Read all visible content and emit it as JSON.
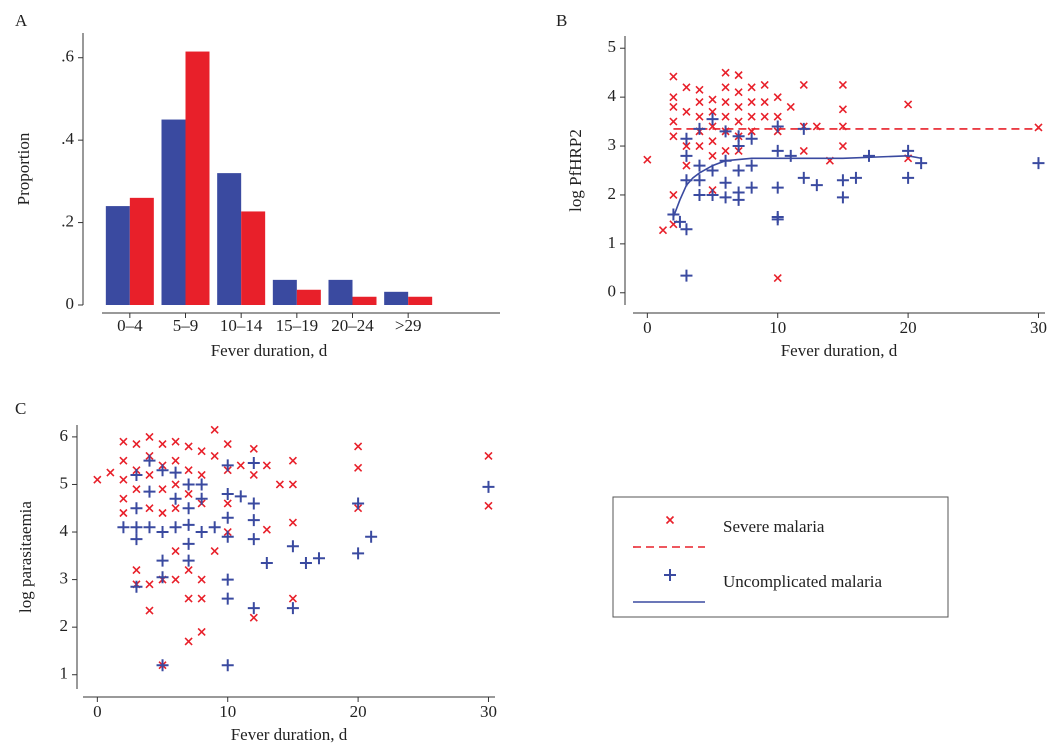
{
  "chart_data": [
    {
      "type": "bar",
      "panel": "A",
      "ylabel": "Proportion",
      "xlabel": "Fever duration, d",
      "categories": [
        "0–4",
        "5–9",
        "10–14",
        "15–19",
        "20–24",
        ">29"
      ],
      "series": [
        {
          "color": "#3a4aa0",
          "values": [
            0.24,
            0.45,
            0.32,
            0.061,
            0.061,
            0.032
          ]
        },
        {
          "color": "#e8202a",
          "values": [
            0.26,
            0.615,
            0.227,
            0.037,
            0.02,
            0.02
          ]
        }
      ],
      "ylim": [
        0,
        0.66
      ],
      "yticks": [
        0,
        {
          "value": 0.2,
          "label": ".2"
        },
        {
          "value": 0.4,
          "label": ".4"
        },
        {
          "value": 0.6,
          "label": ".6"
        }
      ]
    },
    {
      "type": "scatter",
      "panel": "B",
      "ylabel": "log PfHRP2",
      "xlabel": "Fever duration, d",
      "xlim": [
        -1.1,
        30.5
      ],
      "xticks": [
        0,
        10,
        20,
        30
      ],
      "ylim": [
        -0.25,
        5.25
      ],
      "yticks": [
        0,
        1,
        2,
        3,
        4,
        5
      ],
      "series": [
        {
          "name": "Severe malaria",
          "color": "#e8202a",
          "marker": "x",
          "x": [
            0,
            1.2,
            2,
            2,
            2,
            2,
            2,
            2,
            2,
            3,
            3,
            3,
            3,
            4,
            4,
            4,
            4,
            4,
            5,
            5,
            5,
            5,
            5,
            5,
            6,
            6,
            6,
            6,
            6,
            6,
            7,
            7,
            7,
            7,
            7,
            7,
            8,
            8,
            8,
            8,
            9,
            9,
            9,
            10,
            10,
            10,
            10,
            11,
            12,
            12,
            12,
            13,
            14,
            15,
            15,
            15,
            15,
            20,
            20,
            30
          ],
          "values": [
            2.72,
            1.28,
            4.42,
            4.0,
            3.8,
            3.5,
            3.2,
            2.0,
            1.4,
            4.2,
            3.7,
            3.0,
            2.6,
            4.15,
            3.9,
            3.6,
            3.3,
            3.0,
            3.95,
            3.7,
            3.4,
            3.1,
            2.8,
            2.1,
            4.5,
            4.2,
            3.9,
            3.6,
            3.3,
            2.9,
            4.45,
            4.1,
            3.8,
            3.5,
            3.2,
            2.9,
            4.2,
            3.9,
            3.6,
            3.3,
            4.25,
            3.9,
            3.6,
            4.0,
            3.6,
            3.3,
            0.3,
            3.8,
            4.25,
            3.4,
            2.9,
            3.4,
            2.7,
            4.25,
            3.75,
            3.4,
            3.0,
            3.85,
            2.75,
            3.38
          ],
          "line": {
            "style": "dashed",
            "x": [
              2,
              30
            ],
            "values": [
              3.35,
              3.35
            ]
          }
        },
        {
          "name": "Uncomplicated malaria",
          "color": "#3a4aa0",
          "marker": "+",
          "x": [
            2,
            2.5,
            3,
            3,
            3,
            3,
            3,
            4,
            4,
            4,
            4,
            5,
            5,
            5,
            6,
            6,
            6,
            6,
            7,
            7,
            7,
            7,
            7,
            8,
            8,
            8,
            10,
            10,
            10,
            10,
            10,
            11,
            12,
            12,
            13,
            15,
            15,
            16,
            17,
            20,
            20,
            21,
            30
          ],
          "values": [
            1.6,
            1.45,
            1.3,
            0.35,
            2.3,
            2.8,
            3.15,
            2.0,
            2.3,
            2.6,
            3.35,
            2.0,
            2.5,
            3.55,
            1.95,
            2.25,
            2.7,
            3.3,
            1.9,
            2.05,
            2.5,
            3.0,
            3.2,
            2.15,
            2.6,
            3.15,
            1.55,
            1.5,
            2.15,
            2.9,
            3.4,
            2.8,
            2.35,
            3.35,
            2.2,
            1.95,
            2.3,
            2.35,
            2.8,
            2.35,
            2.9,
            2.65,
            2.65
          ],
          "line": {
            "style": "solid",
            "x": [
              2,
              2.5,
              3,
              3.5,
              4,
              5,
              6,
              8,
              10,
              15,
              20,
              21
            ],
            "values": [
              1.55,
              1.9,
              2.2,
              2.35,
              2.45,
              2.6,
              2.7,
              2.75,
              2.75,
              2.75,
              2.8,
              2.75
            ]
          }
        }
      ]
    },
    {
      "type": "scatter",
      "panel": "C",
      "ylabel": "log parasitaemia",
      "xlabel": "Fever duration, d",
      "xlim": [
        -1.1,
        30.5
      ],
      "xticks": [
        0,
        10,
        20,
        30
      ],
      "ylim": [
        0.7,
        6.25
      ],
      "yticks": [
        1,
        2,
        3,
        4,
        5,
        6
      ],
      "series": [
        {
          "color": "#e8202a",
          "marker": "x",
          "x": [
            0,
            1,
            2,
            2,
            2,
            2,
            2,
            3,
            3,
            3,
            3,
            3,
            4,
            4,
            4,
            4,
            4,
            4,
            5,
            5,
            5,
            5,
            5,
            5,
            6,
            6,
            6,
            6,
            6,
            6,
            7,
            7,
            7,
            7,
            7,
            7,
            8,
            8,
            8,
            8,
            8,
            8,
            9,
            9,
            9,
            10,
            10,
            10,
            10,
            11,
            12,
            12,
            12,
            13,
            13,
            14,
            15,
            15,
            15,
            15,
            20,
            20,
            20,
            30,
            30
          ],
          "values": [
            5.1,
            5.25,
            5.9,
            5.5,
            5.1,
            4.7,
            4.4,
            5.85,
            5.3,
            4.9,
            3.2,
            2.9,
            6.0,
            5.6,
            5.2,
            4.5,
            2.35,
            2.9,
            5.85,
            5.4,
            4.9,
            4.4,
            3.0,
            1.2,
            5.9,
            5.5,
            5.0,
            4.5,
            3.6,
            3.0,
            5.8,
            5.3,
            4.8,
            3.2,
            2.6,
            1.7,
            5.7,
            5.2,
            4.6,
            3.0,
            2.6,
            1.9,
            6.15,
            5.6,
            3.6,
            5.85,
            5.3,
            4.6,
            4.0,
            5.4,
            5.75,
            5.2,
            2.2,
            4.05,
            5.4,
            5.0,
            5.5,
            5.0,
            4.2,
            2.6,
            5.8,
            5.35,
            4.5,
            5.6,
            4.55
          ]
        },
        {
          "color": "#3a4aa0",
          "marker": "+",
          "x": [
            2,
            3,
            3,
            3,
            3,
            3,
            4,
            4,
            4,
            5,
            5,
            5,
            5,
            5,
            6,
            6,
            6,
            7,
            7,
            7,
            7,
            7,
            8,
            8,
            8,
            9,
            10,
            10,
            10,
            10,
            10,
            10,
            10,
            11,
            12,
            12,
            12,
            12,
            12,
            13,
            15,
            15,
            16,
            17,
            20,
            20,
            21,
            30
          ],
          "values": [
            4.1,
            5.2,
            4.5,
            4.1,
            3.85,
            2.85,
            5.5,
            4.85,
            4.1,
            5.3,
            4.0,
            3.4,
            3.05,
            1.2,
            5.25,
            4.7,
            4.1,
            5.0,
            4.5,
            4.15,
            3.75,
            3.4,
            5.0,
            4.7,
            4.0,
            4.1,
            5.4,
            4.8,
            4.3,
            3.9,
            3.0,
            2.6,
            1.2,
            4.75,
            5.45,
            4.6,
            4.25,
            3.85,
            2.4,
            3.35,
            3.7,
            2.4,
            3.35,
            3.45,
            4.6,
            3.55,
            3.9,
            4.95
          ]
        }
      ]
    }
  ]
}
